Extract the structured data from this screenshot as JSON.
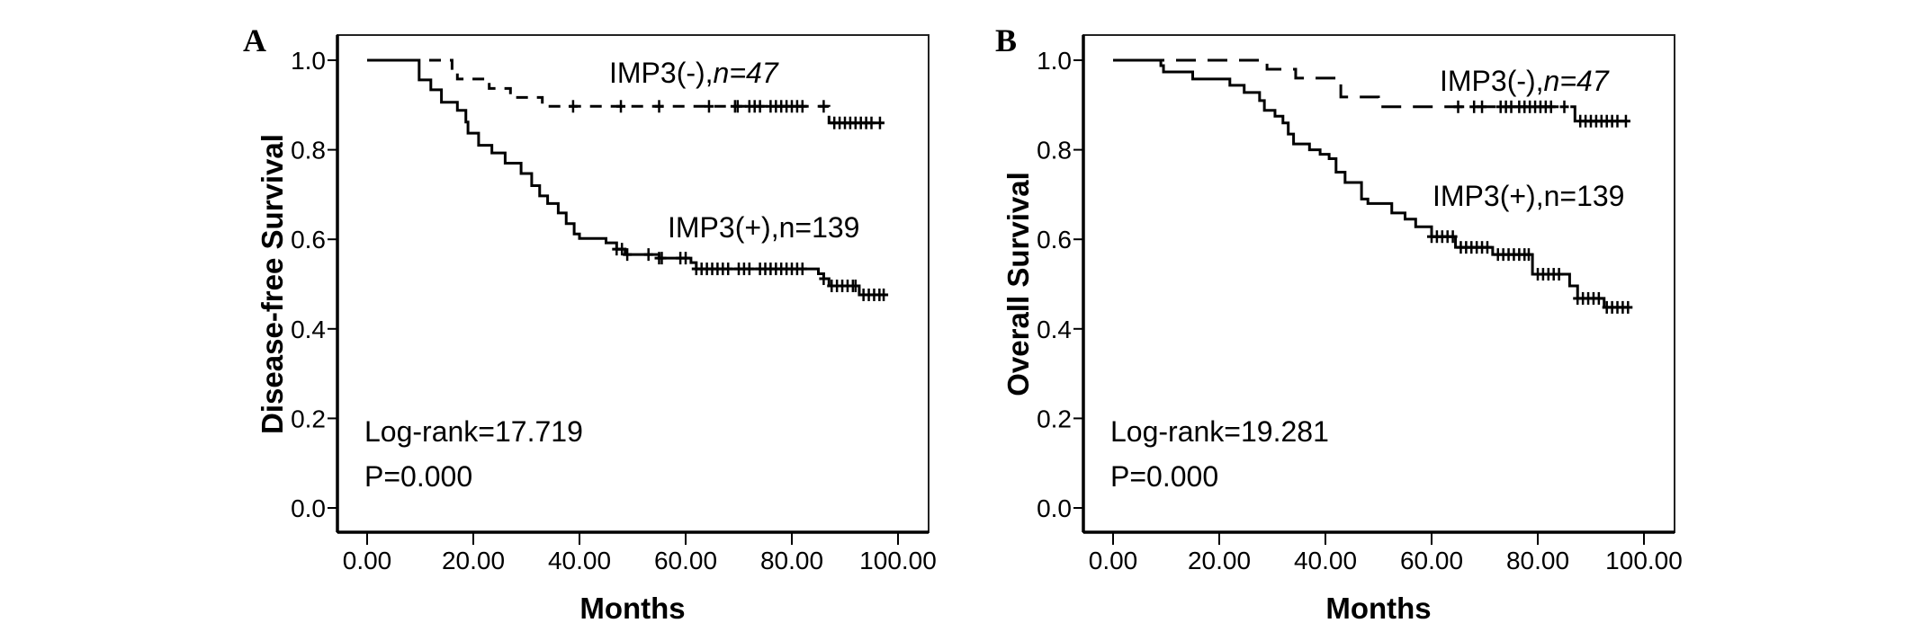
{
  "chart_data": [
    {
      "type": "line",
      "subtype": "kaplan-meier",
      "panel_label": "A",
      "xlabel": "Months",
      "ylabel": "Disease-free Survival",
      "xlim": [
        0,
        100
      ],
      "ylim": [
        0,
        1
      ],
      "xticks": [
        "0.00",
        "20.00",
        "40.00",
        "60.00",
        "80.00",
        "100.00"
      ],
      "yticks": [
        "0.0",
        "0.2",
        "0.4",
        "0.6",
        "0.8",
        "1.0"
      ],
      "grid": false,
      "annotations": {
        "logrank": "Log-rank=17.719",
        "p": "P=0.000"
      },
      "series": [
        {
          "name": "IMP3(-)",
          "label_prefix": "IMP3(-),",
          "label_n": "n=47",
          "style": "dashed",
          "end": 96.6,
          "steps": [
            [
              0,
              1
            ],
            [
              16,
              0.978
            ],
            [
              17,
              0.958
            ],
            [
              23,
              0.937
            ],
            [
              27,
              0.917
            ],
            [
              33,
              0.897
            ],
            [
              87,
              0.86
            ]
          ],
          "censored": [
            38.8,
            47.8,
            55,
            64.4,
            69.3,
            69.8,
            72,
            73,
            74,
            76,
            77,
            78,
            79,
            80,
            81,
            82,
            86,
            88,
            89,
            90,
            91,
            92,
            93,
            94,
            95,
            96.6
          ]
        },
        {
          "name": "IMP3(+)",
          "label_prefix": "IMP3(+),",
          "label_n": "n=139",
          "style": "solid",
          "end": 97.3,
          "steps": [
            [
              0,
              1
            ],
            [
              9.8,
              0.956
            ],
            [
              12,
              0.934
            ],
            [
              14,
              0.906
            ],
            [
              17,
              0.888
            ],
            [
              18.6,
              0.862
            ],
            [
              19,
              0.837
            ],
            [
              21,
              0.81
            ],
            [
              23.5,
              0.793
            ],
            [
              26,
              0.77
            ],
            [
              29,
              0.747
            ],
            [
              31,
              0.72
            ],
            [
              32.5,
              0.697
            ],
            [
              34,
              0.68
            ],
            [
              36,
              0.659
            ],
            [
              37.5,
              0.635
            ],
            [
              39,
              0.612
            ],
            [
              40,
              0.602
            ],
            [
              45,
              0.592
            ],
            [
              47,
              0.578
            ],
            [
              48.6,
              0.566
            ],
            [
              55,
              0.558
            ],
            [
              61,
              0.548
            ],
            [
              62,
              0.534
            ],
            [
              85,
              0.523
            ],
            [
              86,
              0.512
            ],
            [
              87,
              0.496
            ],
            [
              92.7,
              0.476
            ]
          ],
          "censored": [
            47,
            48,
            49,
            53,
            55,
            55.5,
            59,
            60,
            62,
            63,
            64,
            65,
            66,
            67,
            68,
            70,
            71,
            72,
            74,
            75,
            76,
            77,
            78,
            79,
            80,
            81,
            82,
            86,
            87.5,
            88.5,
            89.5,
            90.5,
            91.5,
            92,
            93.5,
            94.5,
            95.5,
            96.5,
            97.3
          ]
        }
      ]
    },
    {
      "type": "line",
      "subtype": "kaplan-meier",
      "panel_label": "B",
      "xlabel": "Months",
      "ylabel": "Overall Survival",
      "xlim": [
        0,
        100
      ],
      "ylim": [
        0,
        1
      ],
      "xticks": [
        "0.00",
        "20.00",
        "40.00",
        "60.00",
        "80.00",
        "100.00"
      ],
      "yticks": [
        "0.0",
        "0.2",
        "0.4",
        "0.6",
        "0.8",
        "1.0"
      ],
      "grid": false,
      "annotations": {
        "logrank": "Log-rank=19.281",
        "p": "P=0.000"
      },
      "series": [
        {
          "name": "IMP3(-)",
          "label_prefix": "IMP3(-),",
          "label_n": "n=47",
          "style": "dashed",
          "end": 96.6,
          "steps": [
            [
              0,
              1
            ],
            [
              29,
              0.98
            ],
            [
              34.4,
              0.96
            ],
            [
              42.9,
              0.918
            ],
            [
              50,
              0.896
            ],
            [
              87,
              0.864
            ]
          ],
          "censored": [
            65,
            68,
            69.5,
            73,
            74,
            75,
            76.5,
            77.5,
            78.5,
            79.5,
            80.5,
            81.5,
            82.5,
            85,
            88,
            89,
            90,
            91,
            92,
            93,
            94,
            95,
            96.6
          ]
        },
        {
          "name": "IMP3(+)",
          "label_prefix": "IMP3(+),",
          "label_n": "n=139",
          "style": "solid",
          "end": 97,
          "steps": [
            [
              0,
              1
            ],
            [
              9,
              0.988
            ],
            [
              9.5,
              0.974
            ],
            [
              15,
              0.958
            ],
            [
              22,
              0.944
            ],
            [
              24.7,
              0.928
            ],
            [
              27.6,
              0.91
            ],
            [
              28.5,
              0.888
            ],
            [
              30.5,
              0.875
            ],
            [
              32,
              0.86
            ],
            [
              33,
              0.835
            ],
            [
              34,
              0.813
            ],
            [
              37,
              0.8
            ],
            [
              39,
              0.79
            ],
            [
              40.7,
              0.78
            ],
            [
              42,
              0.75
            ],
            [
              43.7,
              0.727
            ],
            [
              46.8,
              0.69
            ],
            [
              48,
              0.68
            ],
            [
              52.5,
              0.659
            ],
            [
              55,
              0.645
            ],
            [
              57,
              0.628
            ],
            [
              60,
              0.606
            ],
            [
              64.5,
              0.582
            ],
            [
              71.5,
              0.566
            ],
            [
              79,
              0.522
            ],
            [
              86,
              0.496
            ],
            [
              87.5,
              0.468
            ],
            [
              92.5,
              0.448
            ]
          ],
          "censored": [
            60,
            61,
            62,
            63,
            64,
            65.5,
            66.5,
            67.5,
            68.5,
            69.5,
            70.5,
            72.5,
            73.5,
            74.5,
            75.5,
            76.5,
            77.5,
            78.3,
            80,
            81,
            82,
            83,
            84,
            87.5,
            88.5,
            89.5,
            90.5,
            91.5,
            93,
            94,
            95,
            96,
            97
          ]
        }
      ]
    }
  ]
}
